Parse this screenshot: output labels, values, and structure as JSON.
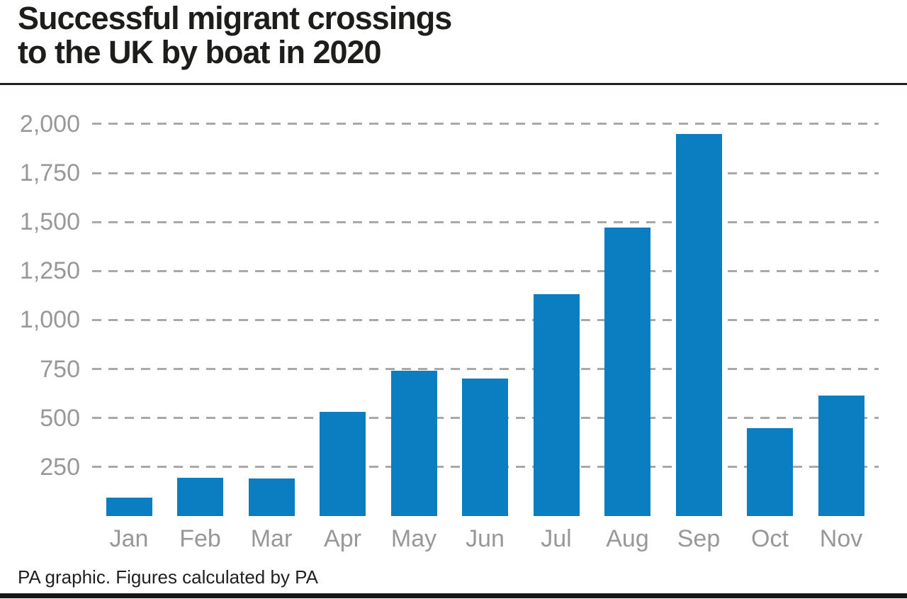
{
  "header": {
    "title_line1": "Successful migrant crossings",
    "title_line2": "to the UK by boat in 2020"
  },
  "footer": {
    "credit": "PA graphic. Figures calculated by PA"
  },
  "colors": {
    "bar": "#0b7ec1",
    "title": "#1d1d1b",
    "axis_label": "#98989a",
    "gridline": "#a9a9a9",
    "rule": "#231f20"
  },
  "chart_data": {
    "type": "bar",
    "title": "Successful migrant crossings to the UK by boat in 2020",
    "categories": [
      "Jan",
      "Feb",
      "Mar",
      "Apr",
      "May",
      "Jun",
      "Jul",
      "Aug",
      "Sep",
      "Oct",
      "Nov"
    ],
    "values": [
      95,
      195,
      190,
      530,
      740,
      700,
      1130,
      1470,
      1950,
      450,
      615
    ],
    "xlabel": "",
    "ylabel": "",
    "ylim": [
      0,
      2000
    ],
    "yticks": [
      250,
      500,
      750,
      1000,
      1250,
      1500,
      1750,
      2000
    ],
    "ytick_labels": [
      "250",
      "500",
      "750",
      "1,000",
      "1,250",
      "1,500",
      "1,750",
      "2,000"
    ],
    "grid": "horizontal-dashed",
    "legend": "none",
    "source": "PA graphic. Figures calculated by PA"
  }
}
